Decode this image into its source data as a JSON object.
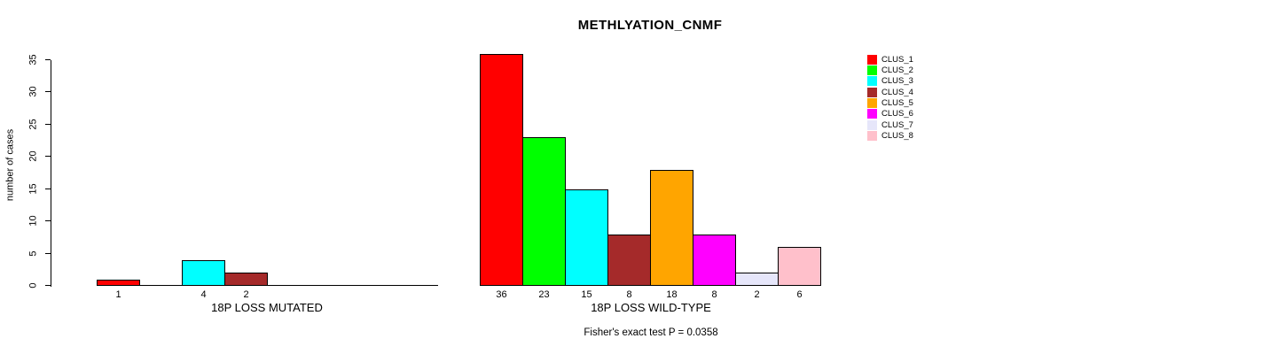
{
  "chart_data": {
    "type": "bar",
    "title": "METHLYATION_CNMF",
    "ylabel": "number of cases",
    "ylim": [
      0,
      35
    ],
    "yticks": [
      0,
      5,
      10,
      15,
      20,
      25,
      30,
      35
    ],
    "grid": false,
    "legend_position": "right",
    "clusters": [
      "CLUS_1",
      "CLUS_2",
      "CLUS_3",
      "CLUS_4",
      "CLUS_5",
      "CLUS_6",
      "CLUS_7",
      "CLUS_8"
    ],
    "colors": [
      "#FF0000",
      "#00FF00",
      "#00FFFF",
      "#A52A2A",
      "#FFA500",
      "#FF00FF",
      "#E6E6FA",
      "#FFC0CB"
    ],
    "groups": [
      {
        "name": "mutated",
        "label": "18P LOSS MUTATED",
        "values": [
          1,
          0,
          4,
          2,
          0,
          0,
          0,
          0
        ],
        "bar_labels": [
          "1",
          "",
          "4",
          "2",
          "",
          "",
          "",
          ""
        ]
      },
      {
        "name": "wild-type",
        "label": "18P LOSS WILD-TYPE",
        "values": [
          36,
          23,
          15,
          8,
          18,
          8,
          2,
          6
        ],
        "bar_labels": [
          "36",
          "23",
          "15",
          "8",
          "18",
          "8",
          "2",
          "6"
        ]
      }
    ],
    "annotation": "Fisher's exact test P = 0.0358"
  },
  "legend": {
    "items": [
      {
        "label": "CLUS_1",
        "color": "#FF0000"
      },
      {
        "label": "CLUS_2",
        "color": "#00FF00"
      },
      {
        "label": "CLUS_3",
        "color": "#00FFFF"
      },
      {
        "label": "CLUS_4",
        "color": "#A52A2A"
      },
      {
        "label": "CLUS_5",
        "color": "#FFA500"
      },
      {
        "label": "CLUS_6",
        "color": "#FF00FF"
      },
      {
        "label": "CLUS_7",
        "color": "#E6E6FA"
      },
      {
        "label": "CLUS_8",
        "color": "#FFC0CB"
      }
    ]
  },
  "axis_color": "#000000",
  "background_color": "#FFFFFF"
}
